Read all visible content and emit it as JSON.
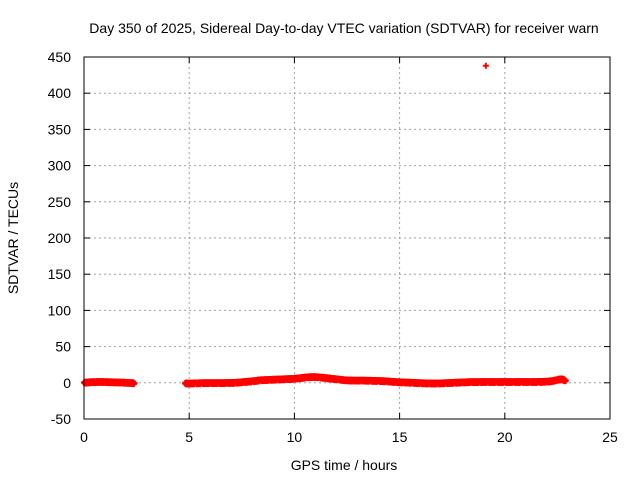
{
  "chart_data": {
    "type": "scatter",
    "title": "Day 350 of 2025, Sidereal Day-to-day VTEC variation (SDTVAR) for receiver warn",
    "xlabel": "GPS time / hours",
    "ylabel": "SDTVAR / TECUs",
    "xlim": [
      0,
      25
    ],
    "ylim": [
      -50,
      450
    ],
    "xticks": [
      "0",
      "5",
      "10",
      "15",
      "20",
      "25"
    ],
    "yticks": [
      "-50",
      "0",
      "50",
      "100",
      "150",
      "200",
      "250",
      "300",
      "350",
      "400",
      "450"
    ],
    "grid": true,
    "marker_color": "#ff0000",
    "marker": "plus",
    "series": [
      {
        "points": [
          [
            0.0,
            0.0
          ],
          [
            0.2,
            0.5
          ],
          [
            0.4,
            1.0
          ],
          [
            0.6,
            1.0
          ],
          [
            0.8,
            1.2
          ],
          [
            1.0,
            1.0
          ],
          [
            1.2,
            0.8
          ],
          [
            1.4,
            0.7
          ],
          [
            1.6,
            0.5
          ],
          [
            1.8,
            0.3
          ],
          [
            2.0,
            0.0
          ],
          [
            2.2,
            -0.3
          ],
          [
            2.4,
            -0.5
          ],
          [
            4.8,
            -1.0
          ],
          [
            5.0,
            -1.0
          ],
          [
            5.3,
            -0.8
          ],
          [
            5.6,
            -0.5
          ],
          [
            6.0,
            -0.5
          ],
          [
            6.4,
            -0.5
          ],
          [
            6.8,
            -0.3
          ],
          [
            7.2,
            0.0
          ],
          [
            7.6,
            1.0
          ],
          [
            8.0,
            2.0
          ],
          [
            8.4,
            3.5
          ],
          [
            8.8,
            4.0
          ],
          [
            9.2,
            4.5
          ],
          [
            9.6,
            5.0
          ],
          [
            10.0,
            5.5
          ],
          [
            10.3,
            6.5
          ],
          [
            10.6,
            7.5
          ],
          [
            10.9,
            8.0
          ],
          [
            11.2,
            7.5
          ],
          [
            11.5,
            6.5
          ],
          [
            11.8,
            5.5
          ],
          [
            12.1,
            4.5
          ],
          [
            12.4,
            3.5
          ],
          [
            12.8,
            3.0
          ],
          [
            13.2,
            3.0
          ],
          [
            13.6,
            2.8
          ],
          [
            14.0,
            2.5
          ],
          [
            14.4,
            2.0
          ],
          [
            14.8,
            1.0
          ],
          [
            15.2,
            0.5
          ],
          [
            15.6,
            0.0
          ],
          [
            16.0,
            -0.5
          ],
          [
            16.4,
            -1.0
          ],
          [
            16.8,
            -1.0
          ],
          [
            17.2,
            -0.5
          ],
          [
            17.6,
            0.0
          ],
          [
            18.0,
            0.5
          ],
          [
            18.4,
            1.0
          ],
          [
            18.8,
            1.0
          ],
          [
            19.2,
            1.2
          ],
          [
            19.6,
            1.0
          ],
          [
            20.0,
            1.2
          ],
          [
            20.4,
            1.0
          ],
          [
            20.8,
            1.2
          ],
          [
            21.2,
            1.0
          ],
          [
            21.6,
            1.2
          ],
          [
            22.0,
            1.5
          ],
          [
            22.3,
            2.5
          ],
          [
            22.5,
            4.0
          ],
          [
            22.7,
            5.0
          ],
          [
            22.9,
            3.0
          ],
          [
            19.1,
            438.0
          ]
        ]
      }
    ]
  }
}
